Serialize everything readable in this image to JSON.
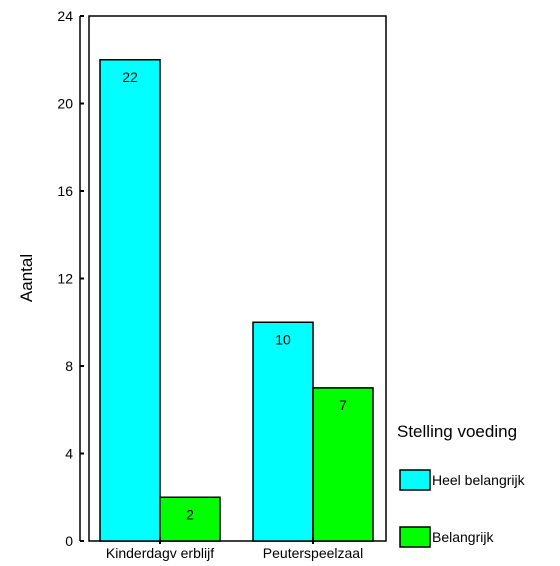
{
  "chart_data": {
    "type": "bar",
    "categories": [
      "Kinderdagv erblijf",
      "Peuterspeelzaal"
    ],
    "series": [
      {
        "name": "Heel belangrijk",
        "color": "#00ffff",
        "values": [
          22,
          10
        ]
      },
      {
        "name": "Belangrijk",
        "color": "#00ff00",
        "values": [
          2,
          7
        ]
      }
    ],
    "xlabel": "",
    "ylabel": "Aantal",
    "ylim": [
      0,
      24
    ],
    "yticks": [
      0,
      4,
      8,
      12,
      16,
      20,
      24
    ],
    "grid": false,
    "legend": {
      "title": "Stelling voeding",
      "position": "right"
    },
    "data_labels": true
  }
}
